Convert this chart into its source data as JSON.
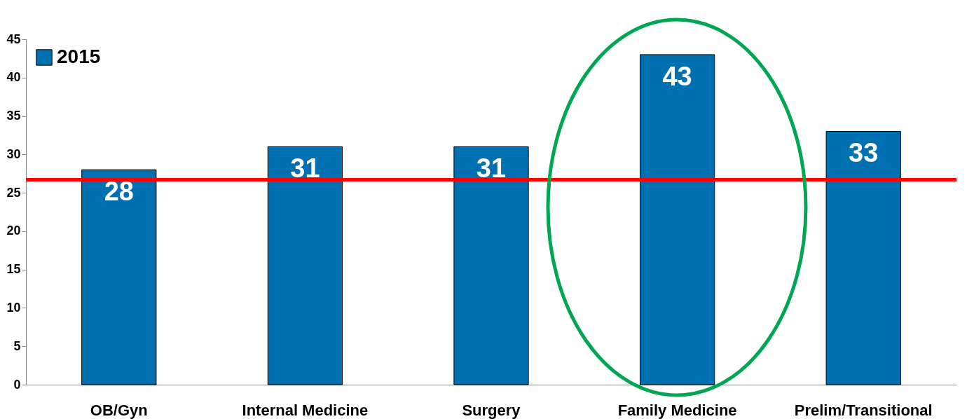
{
  "chart_data": {
    "type": "bar",
    "categories": [
      "OB/Gyn",
      "Internal Medicine",
      "Surgery",
      "Family Medicine",
      "Prelim/Transitional"
    ],
    "series": [
      {
        "name": "2015",
        "color": "#0070b0",
        "values": [
          28,
          31,
          31,
          43,
          33
        ]
      }
    ],
    "ylim": [
      0,
      45
    ],
    "yticks": [
      0,
      5,
      10,
      15,
      20,
      25,
      30,
      35,
      40,
      45
    ],
    "ref_lines": [
      {
        "axis": "y",
        "value": 26.7,
        "color": "#ff0000"
      }
    ],
    "data_labels": true,
    "legend": "top left",
    "grid": false
  }
}
